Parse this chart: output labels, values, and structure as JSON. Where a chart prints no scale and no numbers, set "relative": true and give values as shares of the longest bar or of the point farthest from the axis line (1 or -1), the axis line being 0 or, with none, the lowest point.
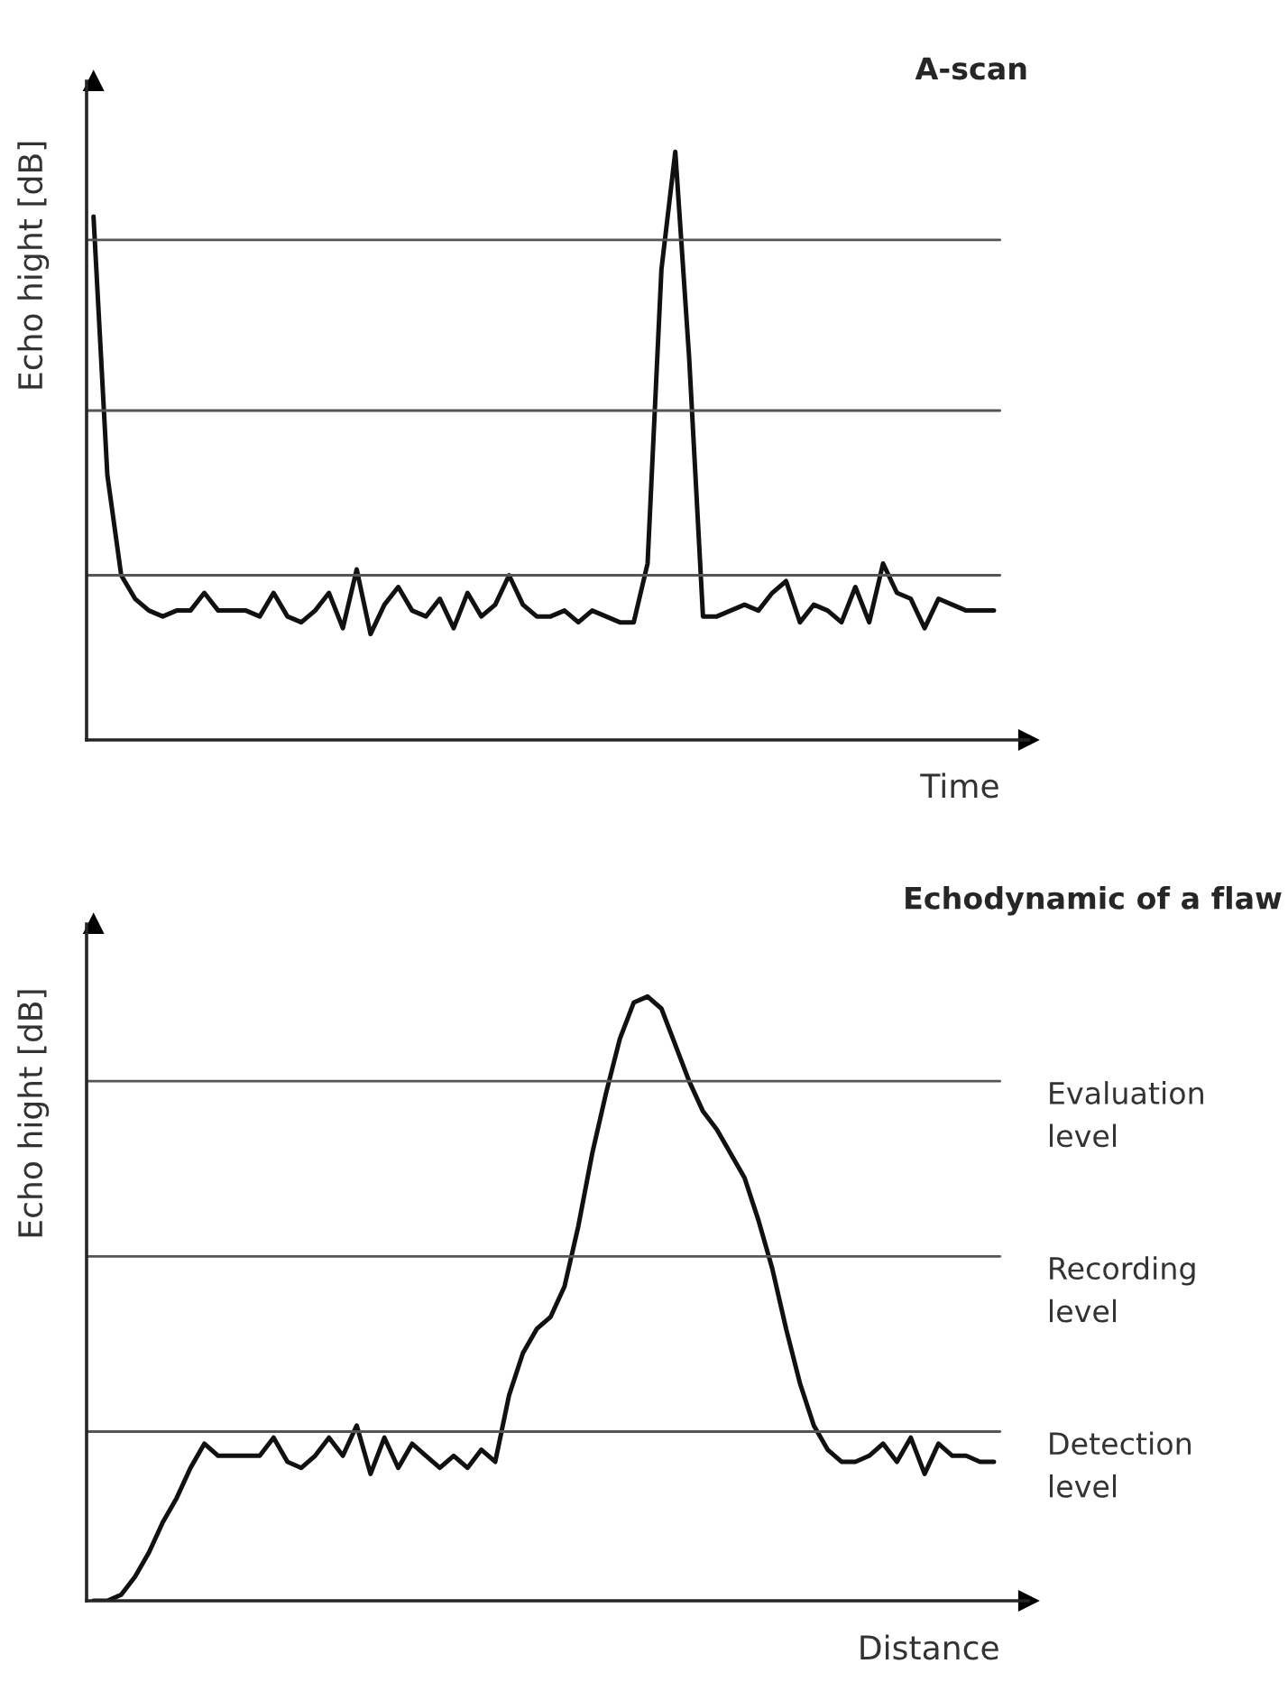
{
  "chart_data": [
    {
      "type": "line",
      "title": "A-scan",
      "xlabel": "Time",
      "ylabel": "Echo hight [dB]",
      "relative": true,
      "categories": [
        null,
        null,
        null,
        null,
        null,
        null,
        null,
        null,
        null,
        null,
        null,
        null,
        null,
        null,
        null,
        null,
        null,
        null,
        null,
        null,
        null,
        null,
        null,
        null,
        null,
        null,
        null,
        null,
        null,
        null,
        null,
        null,
        null,
        null,
        null,
        null,
        null,
        null,
        null,
        null,
        null,
        null,
        null,
        null,
        null,
        null,
        null,
        null,
        null,
        null,
        null,
        null,
        null,
        null,
        null,
        null,
        null,
        null,
        null,
        null,
        null,
        null,
        null,
        null,
        null,
        null
      ],
      "series": [
        {
          "color": "#111111",
          "values": [
            0.89,
            0.45,
            0.28,
            0.24,
            0.22,
            0.21,
            0.22,
            0.22,
            0.25,
            0.22,
            0.22,
            0.22,
            0.21,
            0.25,
            0.21,
            0.2,
            0.22,
            0.25,
            0.19,
            0.29,
            0.18,
            0.23,
            0.26,
            0.22,
            0.21,
            0.24,
            0.19,
            0.25,
            0.21,
            0.23,
            0.28,
            0.23,
            0.21,
            0.21,
            0.22,
            0.2,
            0.22,
            0.21,
            0.2,
            0.2,
            0.3,
            0.8,
            1.0,
            0.65,
            0.21,
            0.21,
            0.22,
            0.23,
            0.22,
            0.25,
            0.27,
            0.2,
            0.23,
            0.22,
            0.2,
            0.26,
            0.2,
            0.3,
            0.25,
            0.24,
            0.19,
            0.24,
            0.23,
            0.22,
            0.22,
            0.22
          ]
        }
      ],
      "ref_lines": [
        {
          "axis": "y",
          "value": 0.85,
          "color": "#555555"
        },
        {
          "axis": "y",
          "value": 0.56,
          "color": "#555555"
        },
        {
          "axis": "y",
          "value": 0.28,
          "color": "#555555"
        }
      ]
    },
    {
      "type": "line",
      "title": "Echodynamic of a flaw",
      "xlabel": "Distance",
      "ylabel": "Echo hight [dB]",
      "relative": true,
      "categories": [
        null,
        null,
        null,
        null,
        null,
        null,
        null,
        null,
        null,
        null,
        null,
        null,
        null,
        null,
        null,
        null,
        null,
        null,
        null,
        null,
        null,
        null,
        null,
        null,
        null,
        null,
        null,
        null,
        null,
        null,
        null,
        null,
        null,
        null,
        null,
        null,
        null,
        null,
        null,
        null,
        null,
        null,
        null,
        null,
        null,
        null,
        null,
        null,
        null,
        null,
        null,
        null,
        null,
        null,
        null,
        null,
        null,
        null,
        null,
        null,
        null,
        null,
        null,
        null,
        null,
        null
      ],
      "series": [
        {
          "color": "#111111",
          "values": [
            0.0,
            0.0,
            0.01,
            0.04,
            0.08,
            0.13,
            0.17,
            0.22,
            0.26,
            0.24,
            0.24,
            0.24,
            0.24,
            0.27,
            0.23,
            0.22,
            0.24,
            0.27,
            0.24,
            0.29,
            0.21,
            0.27,
            0.22,
            0.26,
            0.24,
            0.22,
            0.24,
            0.22,
            0.25,
            0.23,
            0.34,
            0.41,
            0.45,
            0.47,
            0.52,
            0.62,
            0.74,
            0.84,
            0.93,
            0.99,
            1.0,
            0.98,
            0.92,
            0.86,
            0.81,
            0.78,
            0.74,
            0.7,
            0.63,
            0.55,
            0.45,
            0.36,
            0.29,
            0.25,
            0.23,
            0.23,
            0.24,
            0.26,
            0.23,
            0.27,
            0.21,
            0.26,
            0.24,
            0.24,
            0.23,
            0.23
          ]
        }
      ],
      "ref_lines": [
        {
          "axis": "y",
          "value": 0.86,
          "label": "Evaluation\nlevel",
          "color": "#555555"
        },
        {
          "axis": "y",
          "value": 0.57,
          "label": "Recording\nlevel",
          "color": "#555555"
        },
        {
          "axis": "y",
          "value": 0.28,
          "label": "Detection\nlevel",
          "color": "#555555"
        }
      ]
    }
  ]
}
